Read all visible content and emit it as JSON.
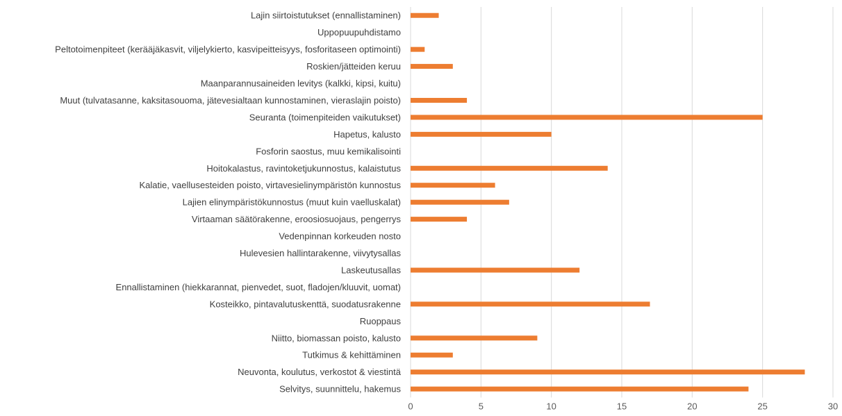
{
  "chart_data": {
    "type": "bar",
    "orientation": "horizontal",
    "categories": [
      "Lajin siirtoistutukset (ennallistaminen)",
      "Uppopuupuhdistamo",
      "Peltotoimenpiteet (kerääjäkasvit, viljelykierto, kasvipeitteisyys, fosforitaseen optimointi)",
      "Roskien/jätteiden keruu",
      "Maanparannusaineiden levitys (kalkki, kipsi, kuitu)",
      "Muut (tulvatasanne, kaksitasouoma, jätevesialtaan kunnostaminen, vieraslajin poisto)",
      "Seuranta (toimenpiteiden vaikutukset)",
      "Hapetus, kalusto",
      "Fosforin saostus, muu kemikalisointi",
      "Hoitokalastus, ravintoketjukunnostus, kalaistutus",
      "Kalatie, vaellusesteiden poisto, virtavesielinympäristön kunnostus",
      "Lajien elinympäristökunnostus (muut kuin vaelluskalat)",
      "Virtaaman säätörakenne, eroosiosuojaus, pengerrys",
      "Vedenpinnan korkeuden nosto",
      "Hulevesien hallintarakenne, viivytysallas",
      "Laskeutusallas",
      "Ennallistaminen (hiekkarannat, pienvedet, suot, fladojen/kluuvit, uomat)",
      "Kosteikko, pintavalutuskenttä, suodatusrakenne",
      "Ruoppaus",
      "Niitto, biomassan poisto, kalusto",
      "Tutkimus & kehittäminen",
      "Neuvonta, koulutus, verkostot & viestintä",
      "Selvitys, suunnittelu, hakemus"
    ],
    "values": [
      2,
      0,
      1,
      3,
      0,
      4,
      25,
      10,
      0,
      14,
      6,
      7,
      4,
      0,
      0,
      12,
      0,
      17,
      0,
      9,
      3,
      28,
      24
    ],
    "xlim": [
      0,
      30
    ],
    "x_ticks": [
      "0",
      "5",
      "10",
      "15",
      "20",
      "25",
      "30"
    ],
    "grid": "vertical",
    "colors": {
      "bar": "#ED7D31",
      "grid": "#D9D9D9",
      "text": "#404040"
    },
    "title": "",
    "xlabel": "",
    "ylabel": ""
  }
}
